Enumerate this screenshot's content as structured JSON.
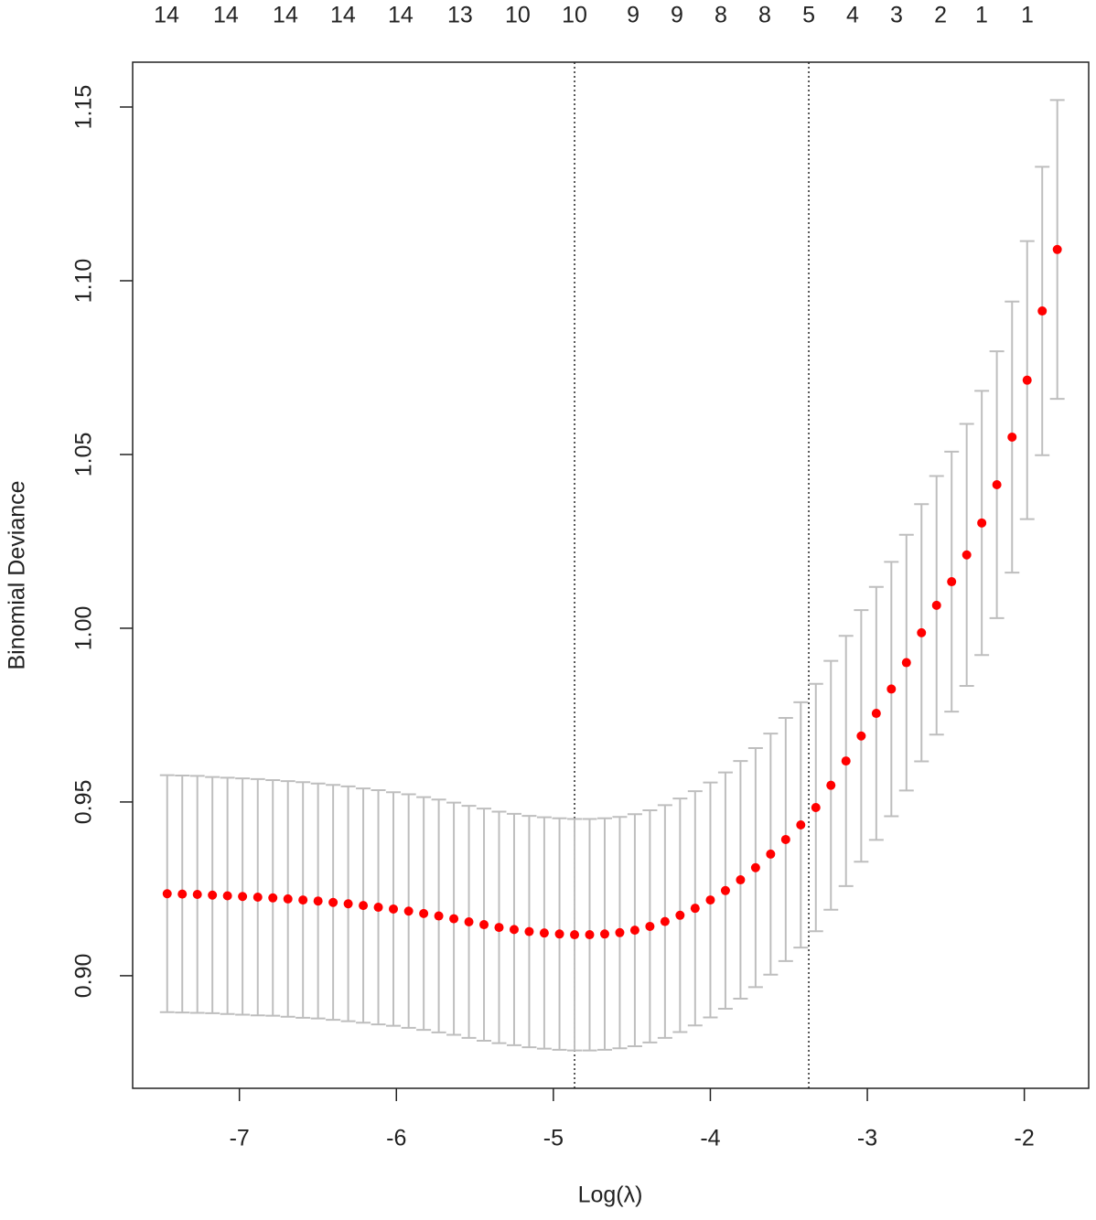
{
  "chart_data": {
    "type": "errorbar",
    "xlabel": "Log(λ)",
    "ylabel": "Binomial Deviance",
    "xlim": [
      -7.68,
      -1.59
    ],
    "ylim": [
      0.8676,
      1.1629
    ],
    "xticks": [
      -7,
      -6,
      -5,
      -4,
      -3,
      -2
    ],
    "yticks": [
      {
        "value": 0.9,
        "label": "0.90"
      },
      0.95,
      {
        "value": 1.0,
        "label": "1.00"
      },
      1.05,
      {
        "value": 1.1,
        "label": "1.10"
      },
      1.15
    ],
    "top_ticks": [
      {
        "value": -7.464,
        "label": "14"
      },
      {
        "value": -7.086,
        "label": "14"
      },
      {
        "value": -6.707,
        "label": "14"
      },
      {
        "value": -6.34,
        "label": "14"
      },
      {
        "value": -5.973,
        "label": "14"
      },
      {
        "value": -5.594,
        "label": "13"
      },
      {
        "value": -5.227,
        "label": "10"
      },
      {
        "value": -4.865,
        "label": "10"
      },
      {
        "value": -4.492,
        "label": "9"
      },
      {
        "value": -4.213,
        "label": "9"
      },
      {
        "value": -3.933,
        "label": "8"
      },
      {
        "value": -3.653,
        "label": "8"
      },
      {
        "value": -3.373,
        "label": "5"
      },
      {
        "value": -3.094,
        "label": "4"
      },
      {
        "value": -2.814,
        "label": "3"
      },
      {
        "value": -2.534,
        "label": "2"
      },
      {
        "value": -2.272,
        "label": "1"
      },
      {
        "value": -1.981,
        "label": "1"
      }
    ],
    "vlines": [
      -4.865,
      -3.373
    ],
    "point_color": "#ff0000",
    "bar_color": "#bebebe",
    "x": [
      -7.46,
      -7.364,
      -7.268,
      -7.172,
      -7.076,
      -6.98,
      -6.883,
      -6.787,
      -6.691,
      -6.595,
      -6.499,
      -6.403,
      -6.307,
      -6.211,
      -6.115,
      -6.019,
      -5.922,
      -5.826,
      -5.73,
      -5.634,
      -5.538,
      -5.442,
      -5.346,
      -5.25,
      -5.154,
      -5.058,
      -4.961,
      -4.865,
      -4.769,
      -4.673,
      -4.577,
      -4.481,
      -4.385,
      -4.289,
      -4.193,
      -4.097,
      -4.0,
      -3.904,
      -3.808,
      -3.712,
      -3.616,
      -3.52,
      -3.424,
      -3.328,
      -3.232,
      -3.136,
      -3.039,
      -2.943,
      -2.847,
      -2.751,
      -2.655,
      -2.559,
      -2.463,
      -2.367,
      -2.271,
      -2.175,
      -2.078,
      -1.982,
      -1.886,
      -1.79
    ],
    "values": [
      0.9236,
      0.9235,
      0.9234,
      0.9232,
      0.923,
      0.9228,
      0.9226,
      0.9224,
      0.9221,
      0.9218,
      0.9215,
      0.9211,
      0.9207,
      0.9202,
      0.9197,
      0.9192,
      0.9186,
      0.9179,
      0.9172,
      0.9164,
      0.9155,
      0.9147,
      0.9139,
      0.9133,
      0.9127,
      0.9123,
      0.912,
      0.9118,
      0.9118,
      0.912,
      0.9124,
      0.9131,
      0.9142,
      0.9156,
      0.9174,
      0.9194,
      0.9218,
      0.9245,
      0.9276,
      0.9311,
      0.935,
      0.9392,
      0.9434,
      0.9484,
      0.9548,
      0.9618,
      0.969,
      0.9755,
      0.9825,
      0.9901,
      0.9987,
      1.0066,
      1.0134,
      1.0211,
      1.0303,
      1.0413,
      1.055,
      1.0714,
      1.0913,
      1.109
    ],
    "errors": [
      0.0341,
      0.0341,
      0.0341,
      0.034,
      0.034,
      0.034,
      0.034,
      0.0339,
      0.0339,
      0.0339,
      0.0338,
      0.0338,
      0.0338,
      0.0337,
      0.0337,
      0.0336,
      0.0336,
      0.0335,
      0.0335,
      0.0334,
      0.0334,
      0.0334,
      0.0333,
      0.0333,
      0.0333,
      0.0333,
      0.0333,
      0.0333,
      0.0333,
      0.0333,
      0.0333,
      0.0334,
      0.0334,
      0.0335,
      0.0336,
      0.0337,
      0.0338,
      0.034,
      0.0342,
      0.0344,
      0.0347,
      0.035,
      0.0353,
      0.0356,
      0.0358,
      0.036,
      0.0362,
      0.0364,
      0.0366,
      0.0368,
      0.037,
      0.0372,
      0.0374,
      0.0377,
      0.038,
      0.0384,
      0.039,
      0.04,
      0.0415,
      0.043
    ]
  }
}
